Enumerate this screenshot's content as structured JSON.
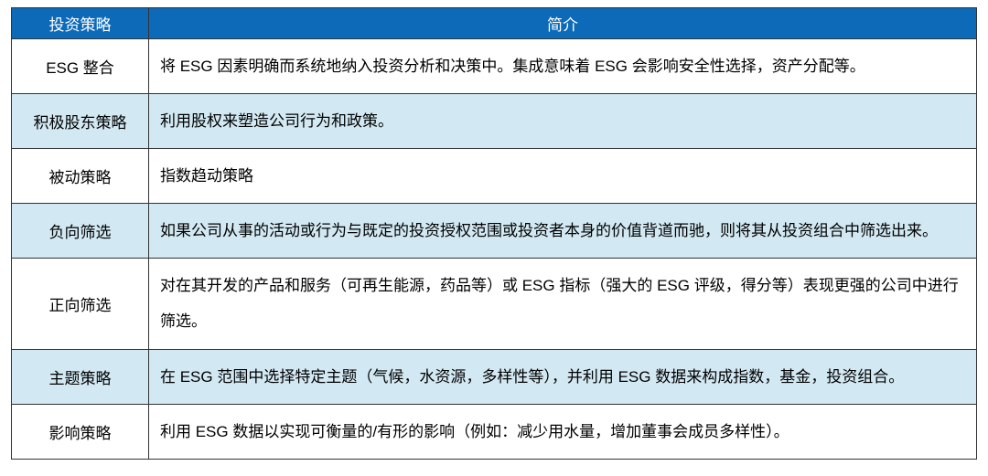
{
  "table": {
    "type": "table",
    "header_bg": "#0d6ab8",
    "header_fg": "#ffffff",
    "alt_row_bg": "#d2e8f2",
    "border_color": "#333333",
    "columns": [
      "投资策略",
      "简介"
    ],
    "rows": [
      {
        "strategy": "ESG 整合",
        "desc": "将 ESG 因素明确而系统地纳入投资分析和决策中。集成意味着 ESG 会影响安全性选择，资产分配等。"
      },
      {
        "strategy": "积极股东策略",
        "desc": "利用股权来塑造公司行为和政策。"
      },
      {
        "strategy": "被动策略",
        "desc": "指数趋动策略"
      },
      {
        "strategy": "负向筛选",
        "desc": "如果公司从事的活动或行为与既定的投资授权范围或投资者本身的价值背道而驰，则将其从投资组合中筛选出来。"
      },
      {
        "strategy": "正向筛选",
        "desc": "对在其开发的产品和服务（可再生能源，药品等）或 ESG 指标（强大的 ESG 评级，得分等）表现更强的公司中进行筛选。"
      },
      {
        "strategy": "主题策略",
        "desc": "在 ESG 范围中选择特定主题（气候，水资源，多样性等），并利用 ESG 数据来构成指数，基金，投资组合。"
      },
      {
        "strategy": "影响策略",
        "desc": "利用 ESG 数据以实现可衡量的/有形的影响（例如：减少用水量，增加董事会成员多样性）。"
      }
    ]
  }
}
